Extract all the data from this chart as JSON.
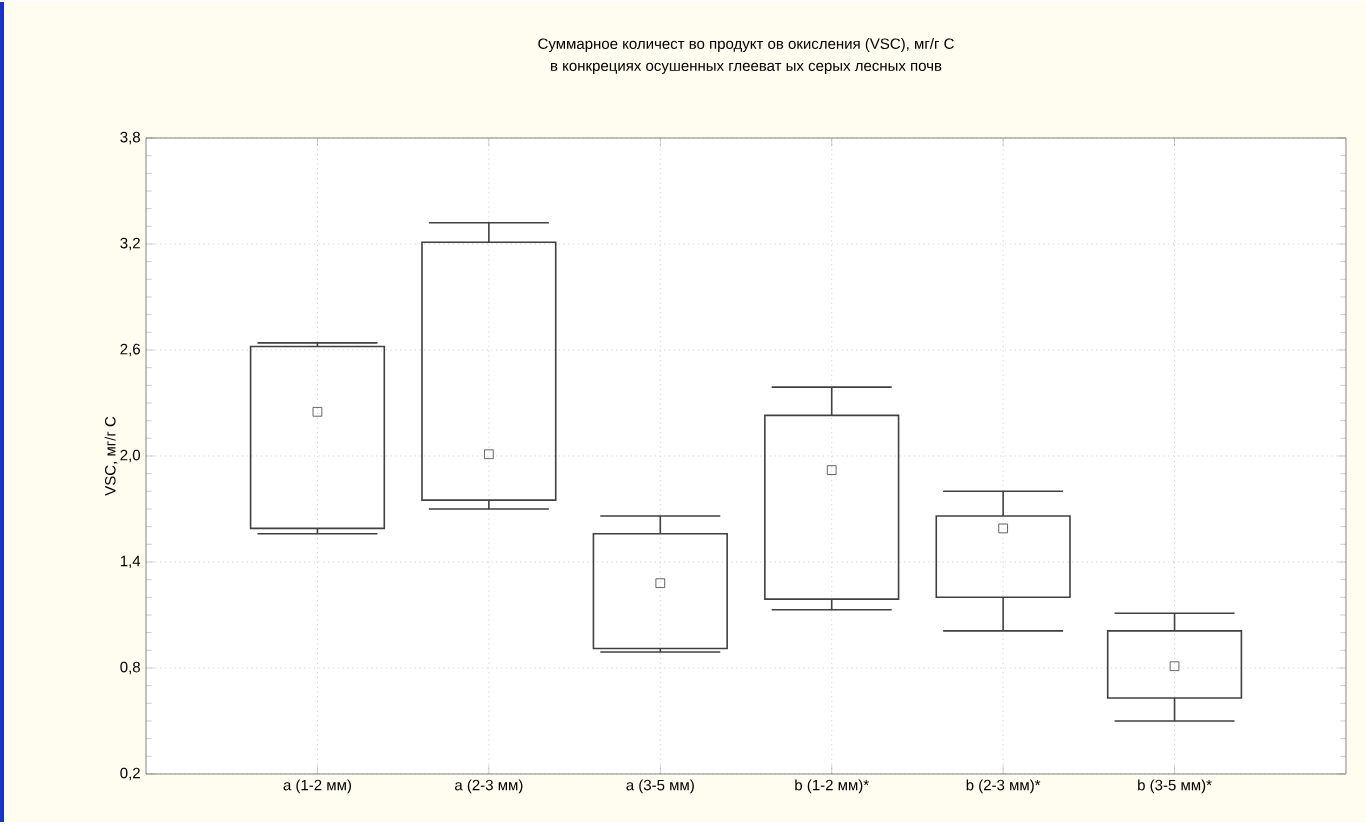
{
  "chart_data": {
    "type": "box",
    "title": "Суммарное количест во продукт ов окисления (VSC), мг/г С",
    "subtitle": "в конкрециях осушенных глееват ых серых лесных почв",
    "ylabel": "VSC,  мг/г С",
    "categories": [
      "a (1-2 мм)",
      "a (2-3 мм)",
      "a (3-5 мм)",
      "b (1-2 мм)*",
      "b (2-3 мм)*",
      "b (3-5 мм)*"
    ],
    "boxes": [
      {
        "low": 1.56,
        "q1": 1.59,
        "median": 2.25,
        "q3": 2.62,
        "high": 2.64
      },
      {
        "low": 1.7,
        "q1": 1.75,
        "median": 2.01,
        "q3": 3.21,
        "high": 3.32
      },
      {
        "low": 0.89,
        "q1": 0.91,
        "median": 1.28,
        "q3": 1.56,
        "high": 1.66
      },
      {
        "low": 1.13,
        "q1": 1.19,
        "median": 1.92,
        "q3": 2.23,
        "high": 2.39
      },
      {
        "low": 1.01,
        "q1": 1.2,
        "median": 1.59,
        "q3": 1.66,
        "high": 1.8
      },
      {
        "low": 0.5,
        "q1": 0.63,
        "median": 0.81,
        "q3": 1.01,
        "high": 1.11
      }
    ],
    "color": "#404040",
    "marker": "square",
    "ylim": [
      0.2,
      3.8
    ],
    "yticks": [
      {
        "value": 0.2,
        "label": "0,2"
      },
      {
        "value": 0.8,
        "label": "0,8"
      },
      {
        "value": 1.4,
        "label": "1,4"
      },
      {
        "value": 2.0,
        "label": "2,0"
      },
      {
        "value": 2.6,
        "label": "2,6"
      },
      {
        "value": 3.2,
        "label": "3,2"
      },
      {
        "value": 3.8,
        "label": "3,8"
      }
    ],
    "grid": true
  }
}
